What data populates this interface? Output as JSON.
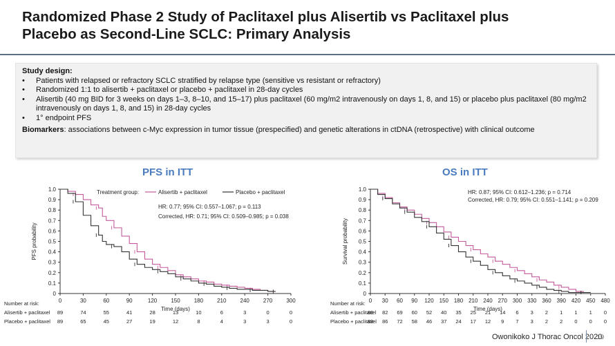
{
  "slide": {
    "title_line1": "Randomized Phase 2 Study of Paclitaxel plus Alisertib vs Paclitaxel plus",
    "title_line2": "Placebo as Second-Line SCLC: Primary Analysis",
    "citation": "Owonikoko J Thorac Oncol 2020",
    "page_number": "19"
  },
  "design": {
    "heading": "Study design:",
    "bullets": [
      "Patients with relapsed or refractory SCLC stratified by relapse type (sensitive vs resistant or refractory)",
      "Randomized 1:1 to alisertib + paclitaxel or placebo + paclitaxel in 28-day cycles",
      "Alisertib (40 mg BID for 3 weeks on days 1–3, 8–10, and 15–17) plus paclitaxel (60 mg/m2 intravenously on days 1, 8, and 15) or placebo plus paclitaxel (80 mg/m2 intravenously on days 1, 8, and 15) in 28-day cycles",
      "1° endpoint PFS"
    ],
    "biomarkers_label": "Biomarkers",
    "biomarkers_text": ": associations between c-Myc expression in tumor tissue (prespecified) and genetic alterations in ctDNA (retrospective) with clinical outcome"
  },
  "colors": {
    "alisertib": "#c45a9c",
    "placebo": "#333333",
    "title_blue": "#4a7bbf"
  },
  "chart_data": [
    {
      "type": "line",
      "title": "PFS in ITT",
      "xlabel": "Time (days)",
      "ylabel": "PFS probability",
      "xlim": [
        0,
        300
      ],
      "ylim": [
        0,
        1.0
      ],
      "x_ticks": [
        0,
        30,
        60,
        90,
        120,
        150,
        180,
        210,
        240,
        270,
        300
      ],
      "y_ticks": [
        0,
        0.1,
        0.2,
        0.3,
        0.4,
        0.5,
        0.6,
        0.7,
        0.8,
        0.9,
        1.0
      ],
      "y_tick_labels": [
        "0",
        "0.1",
        "0.2",
        "0.3",
        "0.4",
        "0.5",
        "0.6",
        "0.7",
        "0.8",
        "0.9",
        "1.0"
      ],
      "legend_title": "Treatment group:",
      "legend": [
        "Alisertib + paclitaxel",
        "Placebo + paclitaxel"
      ],
      "annotations": [
        "HR: 0.77; 95% CI: 0.557–1.067; p = 0.113",
        "Corrected, HR: 0.71; 95% CI: 0.509–0.985; p = 0.038"
      ],
      "series": [
        {
          "name": "Alisertib + paclitaxel",
          "x": [
            0,
            10,
            20,
            30,
            40,
            50,
            55,
            60,
            70,
            80,
            90,
            100,
            110,
            120,
            130,
            140,
            150,
            160,
            170,
            180,
            190,
            200,
            210,
            220,
            230,
            240,
            250,
            260,
            270,
            280
          ],
          "y": [
            1.0,
            0.98,
            0.95,
            0.9,
            0.85,
            0.82,
            0.74,
            0.7,
            0.63,
            0.55,
            0.48,
            0.4,
            0.33,
            0.28,
            0.25,
            0.22,
            0.18,
            0.16,
            0.14,
            0.12,
            0.11,
            0.09,
            0.08,
            0.07,
            0.06,
            0.05,
            0.04,
            0.03,
            0.02,
            0.02
          ]
        },
        {
          "name": "Placebo + paclitaxel",
          "x": [
            0,
            10,
            20,
            30,
            40,
            50,
            55,
            60,
            70,
            80,
            90,
            100,
            110,
            120,
            130,
            140,
            150,
            160,
            170,
            180,
            190,
            200,
            210,
            220,
            230,
            240,
            250,
            260,
            270,
            280
          ],
          "y": [
            1.0,
            0.96,
            0.88,
            0.75,
            0.65,
            0.56,
            0.5,
            0.47,
            0.45,
            0.4,
            0.33,
            0.28,
            0.25,
            0.23,
            0.21,
            0.19,
            0.16,
            0.14,
            0.12,
            0.1,
            0.09,
            0.07,
            0.06,
            0.05,
            0.04,
            0.04,
            0.03,
            0.03,
            0.02,
            0.02
          ]
        }
      ],
      "risk_table": {
        "label": "Number at risk:",
        "rows": [
          {
            "name": "Alisertib + paclitaxel",
            "values": [
              "89",
              "74",
              "55",
              "41",
              "28",
              "13",
              "10",
              "6",
              "3",
              "0",
              "0"
            ]
          },
          {
            "name": "Placebo + paclitaxel",
            "values": [
              "89",
              "65",
              "45",
              "27",
              "19",
              "12",
              "8",
              "4",
              "3",
              "3",
              "0"
            ]
          }
        ]
      }
    },
    {
      "type": "line",
      "title": "OS in ITT",
      "xlabel": "Time (days)",
      "ylabel": "Survival probability",
      "xlim": [
        0,
        480
      ],
      "ylim": [
        0,
        1.0
      ],
      "x_ticks": [
        0,
        30,
        60,
        90,
        120,
        150,
        180,
        210,
        240,
        270,
        300,
        330,
        360,
        390,
        420,
        450,
        480
      ],
      "y_ticks": [
        0,
        0.1,
        0.2,
        0.3,
        0.4,
        0.5,
        0.6,
        0.7,
        0.8,
        0.9,
        1.0
      ],
      "y_tick_labels": [
        "0",
        "0.1",
        "0.2",
        "0.3",
        "0.4",
        "0.5",
        "0.6",
        "0.7",
        "0.8",
        "0.9",
        "1.0"
      ],
      "annotations": [
        "HR: 0.87; 95% CI: 0.612–1.236; p = 0.714",
        "Corrected, HR: 0.79; 95% CI: 0.551–1.141; p = 0.209"
      ],
      "series": [
        {
          "name": "Alisertib + paclitaxel",
          "x": [
            0,
            15,
            30,
            45,
            60,
            75,
            90,
            105,
            120,
            135,
            150,
            165,
            180,
            195,
            210,
            225,
            240,
            255,
            270,
            285,
            300,
            315,
            330,
            345,
            360,
            375,
            390,
            405,
            420,
            435,
            450
          ],
          "y": [
            1.0,
            0.96,
            0.92,
            0.87,
            0.83,
            0.8,
            0.76,
            0.72,
            0.68,
            0.64,
            0.59,
            0.54,
            0.5,
            0.46,
            0.42,
            0.38,
            0.35,
            0.31,
            0.28,
            0.25,
            0.22,
            0.19,
            0.16,
            0.13,
            0.11,
            0.08,
            0.06,
            0.04,
            0.02,
            0.01,
            0.01
          ]
        },
        {
          "name": "Placebo + paclitaxel",
          "x": [
            0,
            15,
            30,
            45,
            60,
            75,
            90,
            105,
            120,
            135,
            150,
            165,
            180,
            195,
            210,
            225,
            240,
            255,
            270,
            285,
            300,
            315,
            330,
            345,
            360,
            375,
            390,
            405,
            420,
            435,
            450
          ],
          "y": [
            1.0,
            0.95,
            0.91,
            0.86,
            0.82,
            0.78,
            0.73,
            0.69,
            0.64,
            0.58,
            0.52,
            0.46,
            0.4,
            0.35,
            0.31,
            0.27,
            0.23,
            0.2,
            0.17,
            0.14,
            0.12,
            0.1,
            0.08,
            0.06,
            0.04,
            0.03,
            0.02,
            0.01,
            0.01,
            0.01,
            0.01
          ]
        }
      ],
      "risk_table": {
        "label": "Number at risk:",
        "rows": [
          {
            "name": "Alisertib + paclitaxel",
            "values": [
              "89",
              "82",
              "69",
              "60",
              "52",
              "40",
              "35",
              "25",
              "21",
              "14",
              "6",
              "3",
              "2",
              "1",
              "1",
              "1",
              "0"
            ]
          },
          {
            "name": "Placebo + paclitaxel",
            "values": [
              "89",
              "86",
              "72",
              "58",
              "46",
              "37",
              "24",
              "17",
              "12",
              "9",
              "7",
              "3",
              "2",
              "2",
              "0",
              "0",
              "0"
            ]
          }
        ]
      }
    }
  ]
}
